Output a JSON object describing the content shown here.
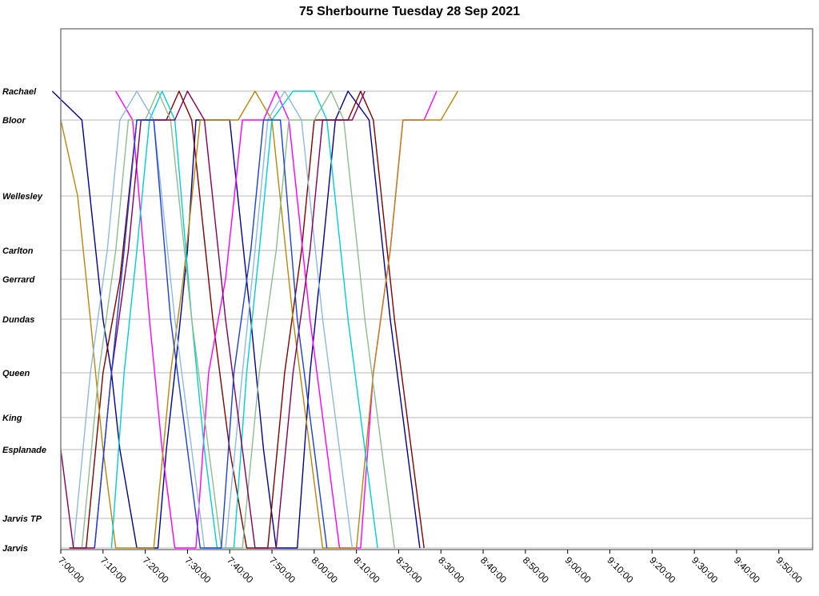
{
  "chart_data": {
    "type": "line",
    "subtype": "marey-stringline",
    "title": "75 Sherbourne Tuesday 28 Sep 2021",
    "xlabel": "",
    "ylabel": "",
    "xlim": [
      "7:00:00",
      "9:58:00"
    ],
    "x_ticks": [
      "7:00:00",
      "7:10:00",
      "7:20:00",
      "7:30:00",
      "7:40:00",
      "7:50:00",
      "8:00:00",
      "8:10:00",
      "8:20:00",
      "8:30:00",
      "8:40:00",
      "8:50:00",
      "9:00:00",
      "9:10:00",
      "9:20:00",
      "9:30:00",
      "9:40:00",
      "9:50:00"
    ],
    "stops": [
      "Jarvis",
      "Jarvis TP",
      "Esplanade",
      "King",
      "Queen",
      "Dundas",
      "Gerrard",
      "Carlton",
      "Wellesley",
      "Bloor",
      "Rachael"
    ],
    "grid": true,
    "legend": "none",
    "vehicle_colors": [
      "#00008b",
      "#800000",
      "#ff00ff",
      "#b8860b",
      "#00ced1",
      "#8fbc8f",
      "#90b8e0",
      "#800060",
      "#1e40d0"
    ],
    "series": [
      {
        "color": "#00008b",
        "trips": [
          [
            "6:58",
            "Rachael"
          ],
          [
            "7:05",
            "Bloor"
          ],
          [
            "7:10",
            "Dundas"
          ],
          [
            "7:12",
            "Queen"
          ],
          [
            "7:14",
            "Esplanade"
          ],
          [
            "7:18",
            "Jarvis"
          ],
          [
            "7:23",
            "Jarvis"
          ],
          [
            "7:25",
            "Esplanade"
          ],
          [
            "7:27",
            "Queen"
          ],
          [
            "7:30",
            "Carlton"
          ],
          [
            "7:32",
            "Bloor"
          ],
          [
            "7:40",
            "Bloor"
          ],
          [
            "7:45",
            "Dundas"
          ],
          [
            "7:48",
            "Esplanade"
          ],
          [
            "7:51",
            "Jarvis"
          ],
          [
            "7:56",
            "Jarvis"
          ],
          [
            "7:59",
            "Queen"
          ],
          [
            "8:02",
            "Carlton"
          ],
          [
            "8:05",
            "Bloor"
          ],
          [
            "8:08",
            "Rachael"
          ],
          [
            "8:13",
            "Bloor"
          ],
          [
            "8:18",
            "Dundas"
          ],
          [
            "8:22",
            "Esplanade"
          ],
          [
            "8:25",
            "Jarvis"
          ]
        ]
      },
      {
        "color": "#800000",
        "trips": [
          [
            "7:02",
            "Jarvis"
          ],
          [
            "7:06",
            "Jarvis"
          ],
          [
            "7:10",
            "Queen"
          ],
          [
            "7:14",
            "Gerrard"
          ],
          [
            "7:18",
            "Bloor"
          ],
          [
            "7:25",
            "Bloor"
          ],
          [
            "7:28",
            "Rachael"
          ],
          [
            "7:31",
            "Bloor"
          ],
          [
            "7:36",
            "Dundas"
          ],
          [
            "7:40",
            "Esplanade"
          ],
          [
            "7:44",
            "Jarvis"
          ],
          [
            "7:49",
            "Jarvis"
          ],
          [
            "7:53",
            "Queen"
          ],
          [
            "7:57",
            "Carlton"
          ],
          [
            "8:00",
            "Bloor"
          ],
          [
            "8:08",
            "Bloor"
          ],
          [
            "8:11",
            "Rachael"
          ],
          [
            "8:14",
            "Bloor"
          ],
          [
            "8:19",
            "Dundas"
          ],
          [
            "8:23",
            "Esplanade"
          ],
          [
            "8:26",
            "Jarvis"
          ]
        ]
      },
      {
        "color": "#ff00ff",
        "trips": [
          [
            "7:13",
            "Rachael"
          ],
          [
            "7:17",
            "Bloor"
          ],
          [
            "7:21",
            "Dundas"
          ],
          [
            "7:24",
            "Esplanade"
          ],
          [
            "7:27",
            "Jarvis"
          ],
          [
            "7:32",
            "Jarvis"
          ],
          [
            "7:35",
            "Queen"
          ],
          [
            "7:39",
            "Gerrard"
          ],
          [
            "7:43",
            "Bloor"
          ],
          [
            "7:48",
            "Bloor"
          ],
          [
            "7:51",
            "Rachael"
          ],
          [
            "7:54",
            "Bloor"
          ],
          [
            "7:59",
            "Dundas"
          ],
          [
            "8:03",
            "Esplanade"
          ],
          [
            "8:06",
            "Jarvis"
          ],
          [
            "8:11",
            "Jarvis"
          ],
          [
            "8:14",
            "Queen"
          ],
          [
            "8:18",
            "Carlton"
          ],
          [
            "8:21",
            "Bloor"
          ],
          [
            "8:26",
            "Bloor"
          ],
          [
            "8:29",
            "Rachael"
          ]
        ]
      },
      {
        "color": "#b8860b",
        "trips": [
          [
            "7:00",
            "Bloor"
          ],
          [
            "7:04",
            "Wellesley"
          ],
          [
            "7:07",
            "Dundas"
          ],
          [
            "7:10",
            "Esplanade"
          ],
          [
            "7:13",
            "Jarvis"
          ],
          [
            "7:22",
            "Jarvis"
          ],
          [
            "7:26",
            "Queen"
          ],
          [
            "7:29",
            "Gerrard"
          ],
          [
            "7:33",
            "Bloor"
          ],
          [
            "7:42",
            "Bloor"
          ],
          [
            "7:46",
            "Rachael"
          ],
          [
            "7:50",
            "Bloor"
          ],
          [
            "7:55",
            "Dundas"
          ],
          [
            "7:59",
            "Esplanade"
          ],
          [
            "8:02",
            "Jarvis"
          ],
          [
            "8:10",
            "Jarvis"
          ],
          [
            "8:14",
            "Queen"
          ],
          [
            "8:18",
            "Carlton"
          ],
          [
            "8:21",
            "Bloor"
          ],
          [
            "8:30",
            "Bloor"
          ],
          [
            "8:34",
            "Rachael"
          ]
        ]
      },
      {
        "color": "#00ced1",
        "trips": [
          [
            "7:12",
            "Jarvis"
          ],
          [
            "7:15",
            "Queen"
          ],
          [
            "7:18",
            "Carlton"
          ],
          [
            "7:21",
            "Bloor"
          ],
          [
            "7:24",
            "Rachael"
          ],
          [
            "7:27",
            "Bloor"
          ],
          [
            "7:31",
            "Dundas"
          ],
          [
            "7:34",
            "Esplanade"
          ],
          [
            "7:37",
            "Jarvis"
          ],
          [
            "7:41",
            "Jarvis"
          ],
          [
            "7:44",
            "Queen"
          ],
          [
            "7:47",
            "Carlton"
          ],
          [
            "7:50",
            "Bloor"
          ],
          [
            "7:55",
            "Rachael"
          ],
          [
            "8:00",
            "Rachael"
          ],
          [
            "8:03",
            "Bloor"
          ],
          [
            "8:08",
            "Dundas"
          ],
          [
            "8:12",
            "Esplanade"
          ],
          [
            "8:15",
            "Jarvis"
          ]
        ]
      },
      {
        "color": "#8fbc8f",
        "trips": [
          [
            "7:05",
            "Jarvis"
          ],
          [
            "7:09",
            "Queen"
          ],
          [
            "7:13",
            "Carlton"
          ],
          [
            "7:16",
            "Bloor"
          ],
          [
            "7:20",
            "Bloor"
          ],
          [
            "7:23",
            "Rachael"
          ],
          [
            "7:26",
            "Bloor"
          ],
          [
            "7:31",
            "Dundas"
          ],
          [
            "7:35",
            "Esplanade"
          ],
          [
            "7:38",
            "Jarvis"
          ],
          [
            "7:43",
            "Jarvis"
          ],
          [
            "7:47",
            "Queen"
          ],
          [
            "7:51",
            "Carlton"
          ],
          [
            "7:54",
            "Bloor"
          ],
          [
            "8:00",
            "Bloor"
          ],
          [
            "8:04",
            "Rachael"
          ],
          [
            "8:07",
            "Bloor"
          ],
          [
            "8:12",
            "Dundas"
          ],
          [
            "8:16",
            "Esplanade"
          ],
          [
            "8:19",
            "Jarvis"
          ]
        ]
      },
      {
        "color": "#90b8e0",
        "trips": [
          [
            "7:03",
            "Jarvis"
          ],
          [
            "7:07",
            "Queen"
          ],
          [
            "7:11",
            "Carlton"
          ],
          [
            "7:14",
            "Bloor"
          ],
          [
            "7:18",
            "Rachael"
          ],
          [
            "7:22",
            "Bloor"
          ],
          [
            "7:27",
            "Dundas"
          ],
          [
            "7:31",
            "Esplanade"
          ],
          [
            "7:34",
            "Jarvis"
          ],
          [
            "7:39",
            "Jarvis"
          ],
          [
            "7:43",
            "Queen"
          ],
          [
            "7:46",
            "Carlton"
          ],
          [
            "7:49",
            "Bloor"
          ],
          [
            "7:53",
            "Rachael"
          ],
          [
            "7:57",
            "Bloor"
          ],
          [
            "8:02",
            "Dundas"
          ],
          [
            "8:06",
            "Esplanade"
          ],
          [
            "8:09",
            "Jarvis"
          ]
        ]
      },
      {
        "color": "#800060",
        "trips": [
          [
            "7:00",
            "Esplanade"
          ],
          [
            "7:03",
            "Jarvis"
          ],
          [
            "7:08",
            "Jarvis"
          ],
          [
            "7:12",
            "Queen"
          ],
          [
            "7:16",
            "Carlton"
          ],
          [
            "7:19",
            "Bloor"
          ],
          [
            "7:27",
            "Bloor"
          ],
          [
            "7:30",
            "Rachael"
          ],
          [
            "7:34",
            "Bloor"
          ],
          [
            "7:39",
            "Dundas"
          ],
          [
            "7:43",
            "Esplanade"
          ],
          [
            "7:46",
            "Jarvis"
          ],
          [
            "7:51",
            "Jarvis"
          ],
          [
            "7:55",
            "Queen"
          ],
          [
            "7:59",
            "Carlton"
          ],
          [
            "8:02",
            "Bloor"
          ],
          [
            "8:09",
            "Bloor"
          ],
          [
            "8:12",
            "Rachael"
          ]
        ]
      },
      {
        "color": "#1e40d0",
        "trips": [
          [
            "7:08",
            "Jarvis"
          ],
          [
            "7:12",
            "Queen"
          ],
          [
            "7:15",
            "Carlton"
          ],
          [
            "7:18",
            "Bloor"
          ],
          [
            "7:22",
            "Bloor"
          ],
          [
            "7:26",
            "Dundas"
          ],
          [
            "7:30",
            "Esplanade"
          ],
          [
            "7:33",
            "Jarvis"
          ],
          [
            "7:38",
            "Jarvis"
          ],
          [
            "7:41",
            "Queen"
          ],
          [
            "7:45",
            "Carlton"
          ],
          [
            "7:48",
            "Bloor"
          ],
          [
            "7:52",
            "Bloor"
          ],
          [
            "7:56",
            "Dundas"
          ],
          [
            "8:00",
            "Esplanade"
          ],
          [
            "8:03",
            "Jarvis"
          ]
        ]
      }
    ]
  }
}
